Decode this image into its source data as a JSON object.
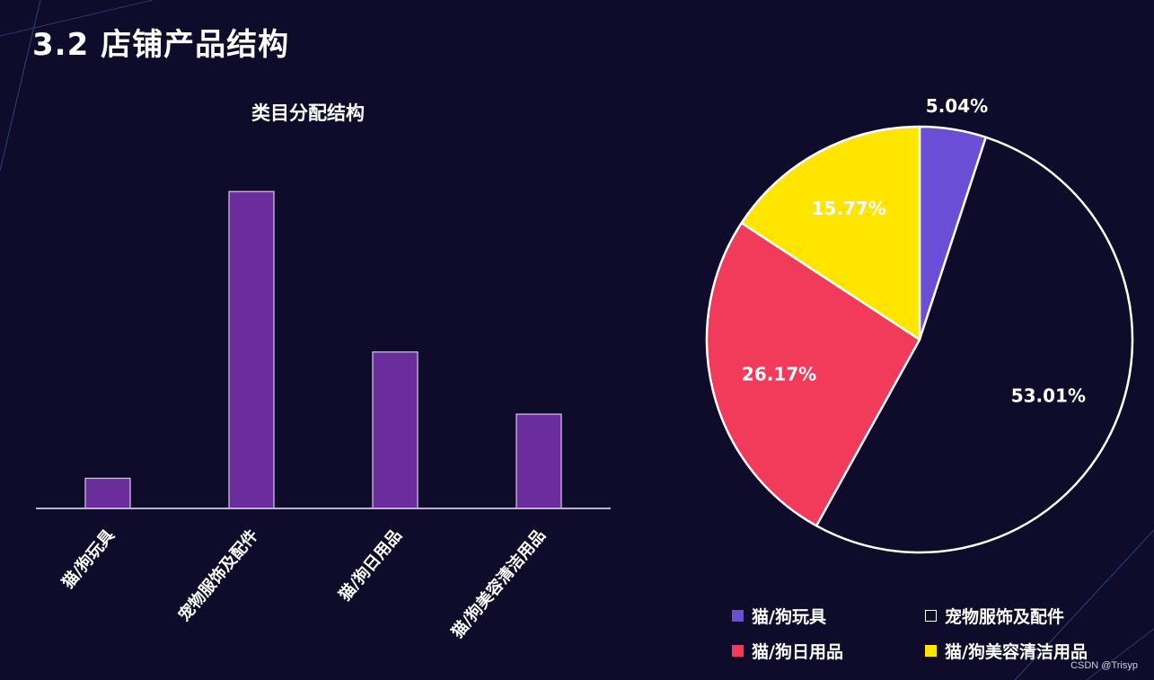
{
  "page": {
    "title": "3.2 店铺产品结构",
    "watermark": "CSDN @Trisyp"
  },
  "colors": {
    "background": "#0f0b2a",
    "bar_fill": "#6c2d9c",
    "bar_stroke": "#d9c7f0",
    "axis": "#b9b4d0",
    "pie_stroke": "#ffffff",
    "pie": [
      "#6a4fd6",
      "#0f0b2a",
      "#f23a5a",
      "#ffe500"
    ]
  },
  "chart_data": [
    {
      "type": "bar",
      "title": "类目分配结构",
      "categories": [
        "猫/狗玩具",
        "宠物服饰及配件",
        "猫/狗日用品",
        "猫/狗美容清洁用品"
      ],
      "values": [
        5.04,
        53.01,
        26.17,
        15.77
      ],
      "ylim": [
        0,
        55
      ],
      "grid": false,
      "xlabel": "",
      "ylabel": ""
    },
    {
      "type": "pie",
      "labels": [
        "猫/狗玩具",
        "宠物服饰及配件",
        "猫/狗日用品",
        "猫/狗美容清洁用品"
      ],
      "values": [
        5.04,
        53.01,
        26.17,
        15.77
      ],
      "data_labels": [
        "5.04%",
        "53.01%",
        "26.17%",
        "15.77%"
      ],
      "legend_placement": "bottom"
    }
  ]
}
